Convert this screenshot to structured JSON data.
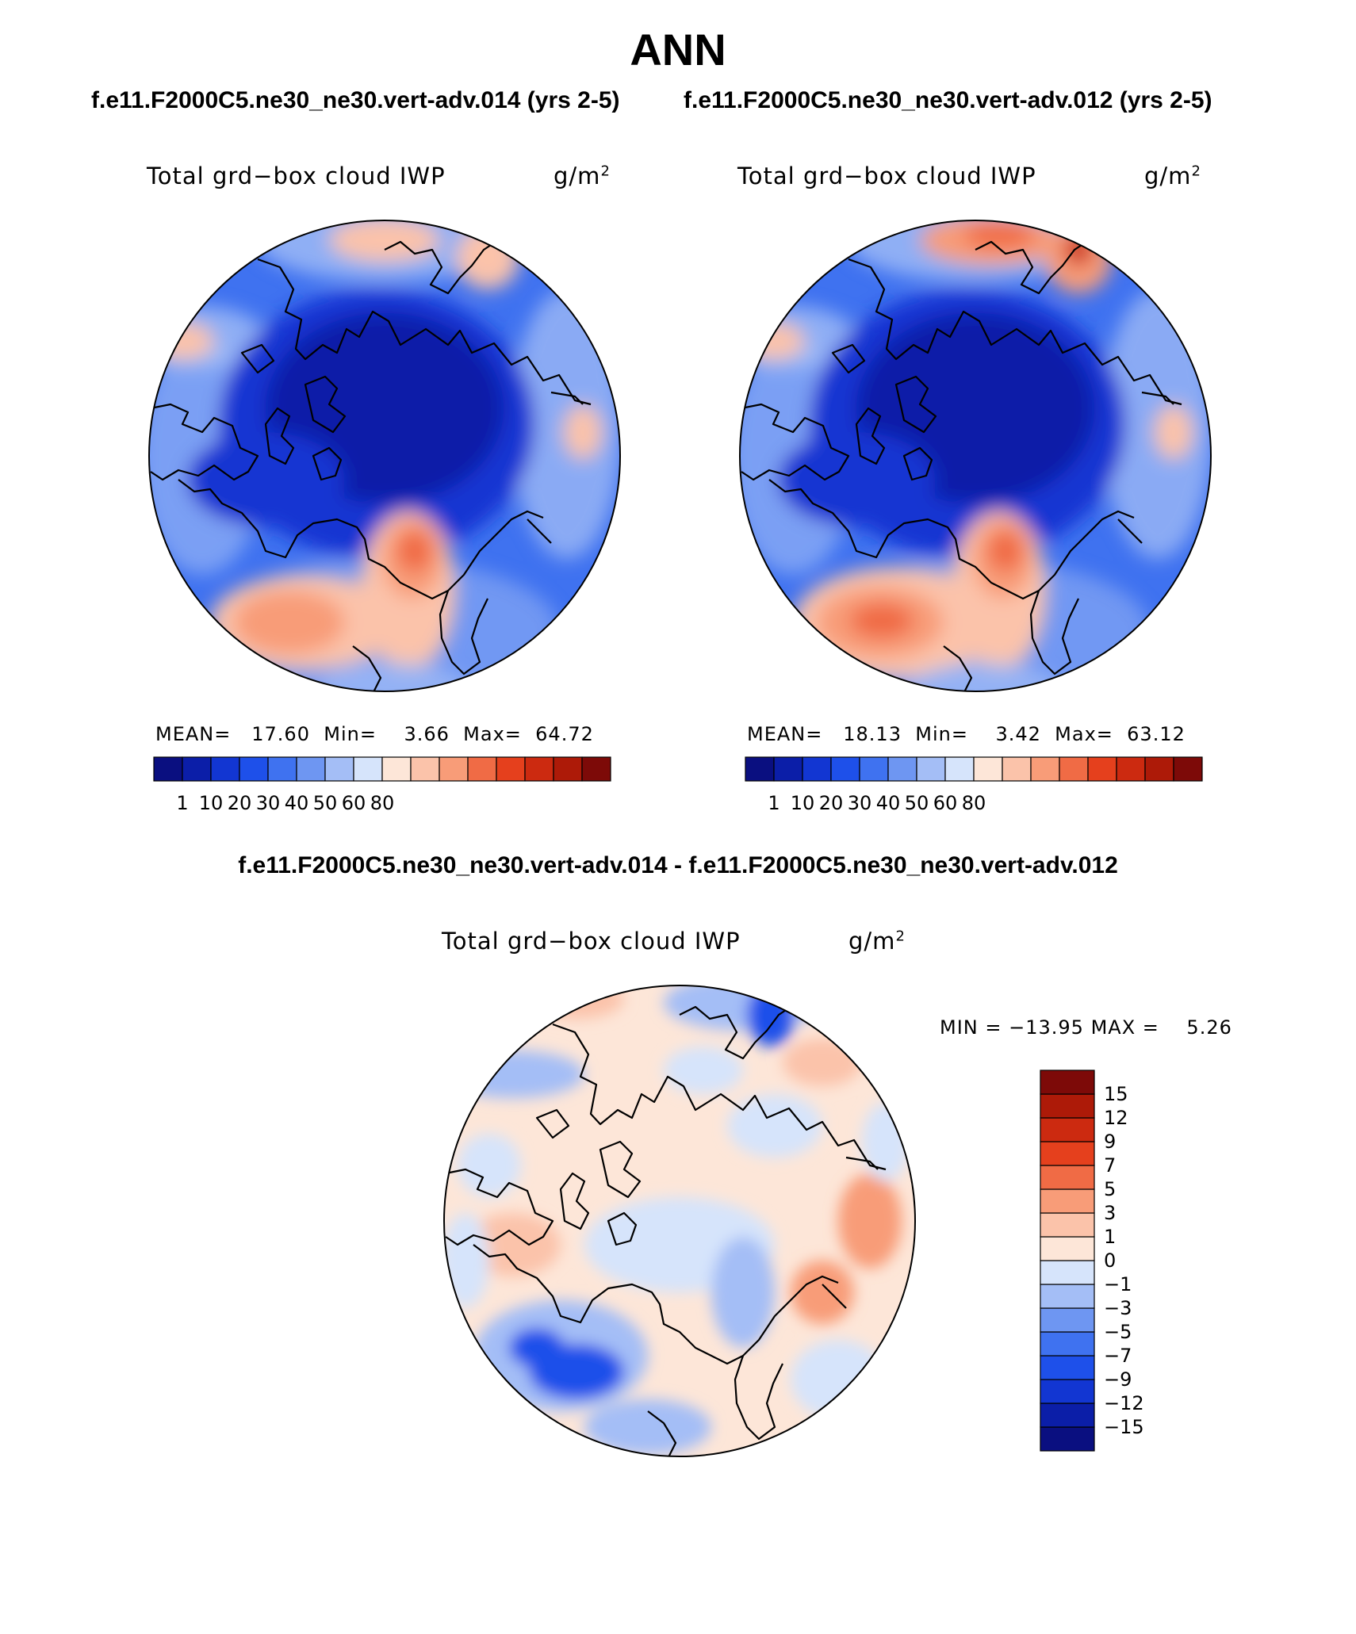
{
  "title": "ANN",
  "panels": [
    {
      "case": "f.e11.F2000C5.ne30_ne30.vert-adv.014 (yrs 2-5)",
      "variable": "Total grd−box cloud IWP",
      "units_base": "g/m",
      "units_exp": "2",
      "stats": {
        "mean_label": "MEAN=",
        "mean": "17.60",
        "min_label": "Min=",
        "min": "3.66",
        "max_label": "Max=",
        "max": "64.72"
      }
    },
    {
      "case": "f.e11.F2000C5.ne30_ne30.vert-adv.012 (yrs 2-5)",
      "variable": "Total grd−box cloud IWP",
      "units_base": "g/m",
      "units_exp": "2",
      "stats": {
        "mean_label": "MEAN=",
        "mean": "18.13",
        "min_label": "Min=",
        "min": "3.42",
        "max_label": "Max=",
        "max": "63.12"
      }
    }
  ],
  "diff_panel": {
    "title": "f.e11.F2000C5.ne30_ne30.vert-adv.014 - f.e11.F2000C5.ne30_ne30.vert-adv.012",
    "variable": "Total grd−box cloud IWP",
    "units_base": "g/m",
    "units_exp": "2",
    "stats": {
      "min_label": "MIN =",
      "min": "−13.95",
      "max_label": "MAX =",
      "max": "5.26"
    }
  },
  "colorbar_main": {
    "colors": [
      "#0a0f80",
      "#0b1ea8",
      "#1236d2",
      "#1e50ea",
      "#3f72f0",
      "#6e96f2",
      "#a4bef6",
      "#d6e4fb",
      "#fde6d8",
      "#fbc3aa",
      "#f89c78",
      "#f06b45",
      "#e5401d",
      "#cc2a10",
      "#ad1a08",
      "#7d0a08"
    ],
    "labels": [
      "1",
      "10",
      "20",
      "30",
      "40",
      "50",
      "60",
      "80"
    ]
  },
  "colorbar_diff": {
    "colors": [
      "#0a0f80",
      "#0b1ea8",
      "#1236d2",
      "#1e50ea",
      "#3f72f0",
      "#6e96f2",
      "#a4bef6",
      "#d6e4fb",
      "#fde6d8",
      "#fbc3aa",
      "#f89c78",
      "#f06b45",
      "#e5401d",
      "#cc2a10",
      "#ad1a08",
      "#7d0a08"
    ],
    "labels": [
      "−15",
      "−12",
      "−9",
      "−7",
      "−5",
      "−3",
      "−1",
      "0",
      "1",
      "3",
      "5",
      "7",
      "9",
      "12",
      "15"
    ]
  },
  "map_palette": {
    "ocean_mid": "#3f72f0",
    "arctic_core": "#0b1ea8",
    "arctic_ring": "#1236d2",
    "warm_1": "#fbc3aa",
    "warm_2": "#f89c78",
    "warm_3": "#f06b45",
    "warm_4": "#cc2a10",
    "cool_light": "#a4bef6",
    "diff_base": "#fde6d8",
    "diff_cool_1": "#d6e4fb",
    "diff_cool_2": "#a4bef6",
    "diff_cool_3": "#1e50ea",
    "diff_warm_1": "#fbc3aa",
    "diff_warm_2": "#f89c78"
  }
}
